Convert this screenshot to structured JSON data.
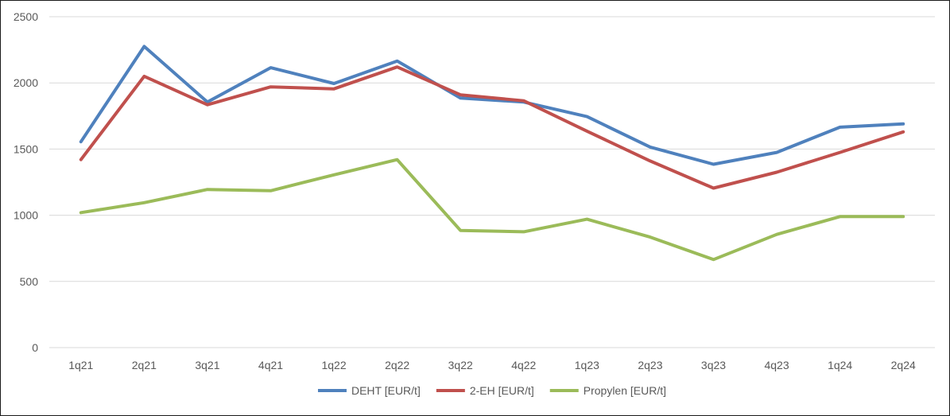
{
  "chart_data": {
    "type": "line",
    "title": "",
    "xlabel": "",
    "ylabel": "",
    "categories": [
      "1q21",
      "2q21",
      "3q21",
      "4q21",
      "1q22",
      "2q22",
      "3q22",
      "4q22",
      "1q23",
      "2q23",
      "3q23",
      "4q23",
      "1q24",
      "2q24"
    ],
    "ylim": [
      0,
      2500
    ],
    "yticks": [
      0,
      500,
      1000,
      1500,
      2000,
      2500
    ],
    "grid": true,
    "legend_position": "bottom",
    "series": [
      {
        "name": "DEHT [EUR/t]",
        "color": "#4f81bd",
        "values": [
          1555,
          2275,
          1855,
          2115,
          1995,
          2165,
          1885,
          1855,
          1745,
          1515,
          1385,
          1475,
          1665,
          1690
        ]
      },
      {
        "name": "2-EH [EUR/t]",
        "color": "#c0504d",
        "values": [
          1420,
          2050,
          1835,
          1970,
          1955,
          2120,
          1910,
          1865,
          1635,
          1410,
          1205,
          1325,
          1475,
          1630
        ]
      },
      {
        "name": "Propylen [EUR/t]",
        "color": "#9bbb59",
        "values": [
          1020,
          1095,
          1195,
          1185,
          1305,
          1420,
          885,
          875,
          970,
          835,
          665,
          855,
          990,
          990
        ]
      }
    ]
  }
}
